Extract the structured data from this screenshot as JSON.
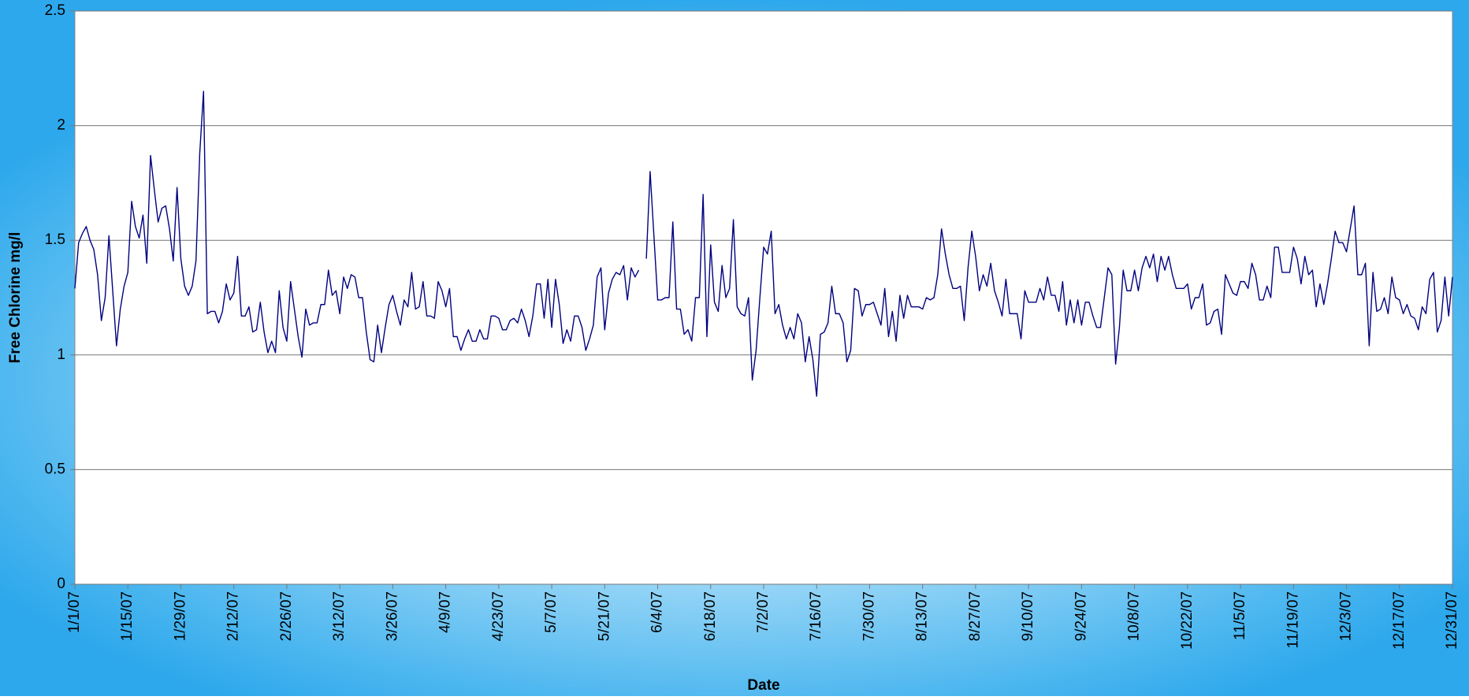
{
  "chart_data": {
    "type": "line",
    "x_label": "Date",
    "y_label": "Free Chlorine mg/l",
    "color": "#000080",
    "grid": true,
    "ylim": [
      0,
      2.5
    ],
    "yticks": [
      0,
      0.5,
      1,
      1.5,
      2,
      2.5
    ],
    "categories": [
      "1/1/07",
      null,
      null,
      null,
      null,
      null,
      null,
      null,
      null,
      null,
      null,
      null,
      null,
      null,
      "1/15/07",
      null,
      null,
      null,
      null,
      null,
      null,
      null,
      null,
      null,
      null,
      null,
      null,
      null,
      "1/29/07",
      null,
      null,
      null,
      null,
      null,
      null,
      null,
      null,
      null,
      null,
      null,
      null,
      null,
      "2/12/07",
      null,
      null,
      null,
      null,
      null,
      null,
      null,
      null,
      null,
      null,
      null,
      null,
      null,
      "2/26/07",
      null,
      null,
      null,
      null,
      null,
      null,
      null,
      null,
      null,
      null,
      null,
      null,
      null,
      "3/12/07",
      null,
      null,
      null,
      null,
      null,
      null,
      null,
      null,
      null,
      null,
      null,
      null,
      null,
      "3/26/07",
      null,
      null,
      null,
      null,
      null,
      null,
      null,
      null,
      null,
      null,
      null,
      null,
      null,
      "4/9/07",
      null,
      null,
      null,
      null,
      null,
      null,
      null,
      null,
      null,
      null,
      null,
      null,
      null,
      "4/23/07",
      null,
      null,
      null,
      null,
      null,
      null,
      null,
      null,
      null,
      null,
      null,
      null,
      null,
      "5/7/07",
      null,
      null,
      null,
      null,
      null,
      null,
      null,
      null,
      null,
      null,
      null,
      null,
      null,
      "5/21/07",
      null,
      null,
      null,
      null,
      null,
      null,
      null,
      null,
      null,
      null,
      null,
      null,
      null,
      "6/4/07",
      null,
      null,
      null,
      null,
      null,
      null,
      null,
      null,
      null,
      null,
      null,
      null,
      null,
      "6/18/07",
      null,
      null,
      null,
      null,
      null,
      null,
      null,
      null,
      null,
      null,
      null,
      null,
      null,
      "7/2/07",
      null,
      null,
      null,
      null,
      null,
      null,
      null,
      null,
      null,
      null,
      null,
      null,
      null,
      "7/16/07",
      null,
      null,
      null,
      null,
      null,
      null,
      null,
      null,
      null,
      null,
      null,
      null,
      null,
      "7/30/07",
      null,
      null,
      null,
      null,
      null,
      null,
      null,
      null,
      null,
      null,
      null,
      null,
      null,
      "8/13/07",
      null,
      null,
      null,
      null,
      null,
      null,
      null,
      null,
      null,
      null,
      null,
      null,
      null,
      "8/27/07",
      null,
      null,
      null,
      null,
      null,
      null,
      null,
      null,
      null,
      null,
      null,
      null,
      null,
      "9/10/07",
      null,
      null,
      null,
      null,
      null,
      null,
      null,
      null,
      null,
      null,
      null,
      null,
      null,
      "9/24/07",
      null,
      null,
      null,
      null,
      null,
      null,
      null,
      null,
      null,
      null,
      null,
      null,
      null,
      "10/8/07",
      null,
      null,
      null,
      null,
      null,
      null,
      null,
      null,
      null,
      null,
      null,
      null,
      null,
      "10/22/07",
      null,
      null,
      null,
      null,
      null,
      null,
      null,
      null,
      null,
      null,
      null,
      null,
      null,
      "11/5/07",
      null,
      null,
      null,
      null,
      null,
      null,
      null,
      null,
      null,
      null,
      null,
      null,
      null,
      "11/19/07",
      null,
      null,
      null,
      null,
      null,
      null,
      null,
      null,
      null,
      null,
      null,
      null,
      null,
      "12/3/07",
      null,
      null,
      null,
      null,
      null,
      null,
      null,
      null,
      null,
      null,
      null,
      null,
      null,
      "12/17/07",
      null,
      null,
      null,
      null,
      null,
      null,
      null,
      null,
      null,
      null,
      null,
      null,
      null,
      "12/31/07"
    ],
    "values": [
      1.29,
      1.49,
      1.53,
      1.56,
      1.5,
      1.46,
      1.35,
      1.15,
      1.25,
      1.52,
      1.28,
      1.04,
      1.2,
      1.3,
      1.36,
      1.67,
      1.56,
      1.51,
      1.61,
      1.4,
      1.87,
      1.72,
      1.58,
      1.64,
      1.65,
      1.55,
      1.41,
      1.73,
      1.42,
      1.3,
      1.26,
      1.3,
      1.41,
      1.88,
      2.15,
      1.18,
      1.19,
      1.19,
      1.14,
      1.19,
      1.31,
      1.24,
      1.27,
      1.43,
      1.17,
      1.17,
      1.21,
      1.1,
      1.11,
      1.23,
      1.1,
      1.01,
      1.06,
      1.01,
      1.28,
      1.12,
      1.06,
      1.32,
      1.2,
      1.08,
      0.99,
      1.2,
      1.13,
      1.14,
      1.14,
      1.22,
      1.22,
      1.37,
      1.26,
      1.28,
      1.18,
      1.34,
      1.29,
      1.35,
      1.34,
      1.25,
      1.25,
      1.1,
      0.98,
      0.97,
      1.13,
      1.01,
      1.12,
      1.22,
      1.26,
      1.19,
      1.13,
      1.24,
      1.21,
      1.36,
      1.2,
      1.21,
      1.32,
      1.17,
      1.17,
      1.16,
      1.32,
      1.28,
      1.21,
      1.29,
      1.08,
      1.08,
      1.02,
      1.07,
      1.11,
      1.06,
      1.06,
      1.11,
      1.07,
      1.07,
      1.17,
      1.17,
      1.16,
      1.11,
      1.11,
      1.15,
      1.16,
      1.14,
      1.2,
      1.15,
      1.08,
      1.17,
      1.31,
      1.31,
      1.16,
      1.33,
      1.12,
      1.33,
      1.22,
      1.05,
      1.11,
      1.06,
      1.17,
      1.17,
      1.12,
      1.02,
      1.07,
      1.13,
      1.34,
      1.38,
      1.11,
      1.27,
      1.33,
      1.36,
      1.35,
      1.39,
      1.24,
      1.38,
      1.34,
      1.37,
      null,
      1.42,
      1.8,
      1.52,
      1.24,
      1.24,
      1.25,
      1.25,
      1.58,
      1.2,
      1.2,
      1.09,
      1.11,
      1.06,
      1.25,
      1.25,
      1.7,
      1.08,
      1.48,
      1.23,
      1.19,
      1.39,
      1.25,
      1.29,
      1.59,
      1.21,
      1.18,
      1.17,
      1.25,
      0.89,
      1.02,
      1.25,
      1.47,
      1.44,
      1.54,
      1.18,
      1.22,
      1.13,
      1.07,
      1.12,
      1.07,
      1.18,
      1.14,
      0.97,
      1.08,
      0.98,
      0.82,
      1.09,
      1.1,
      1.14,
      1.3,
      1.18,
      1.18,
      1.14,
      0.97,
      1.02,
      1.29,
      1.28,
      1.17,
      1.22,
      1.22,
      1.23,
      1.18,
      1.13,
      1.29,
      1.08,
      1.19,
      1.06,
      1.26,
      1.16,
      1.26,
      1.21,
      1.21,
      1.21,
      1.2,
      1.25,
      1.24,
      1.25,
      1.35,
      1.55,
      1.44,
      1.35,
      1.29,
      1.29,
      1.3,
      1.15,
      1.38,
      1.54,
      1.43,
      1.28,
      1.35,
      1.3,
      1.4,
      1.28,
      1.23,
      1.17,
      1.33,
      1.18,
      1.18,
      1.18,
      1.07,
      1.28,
      1.23,
      1.23,
      1.23,
      1.29,
      1.24,
      1.34,
      1.26,
      1.26,
      1.19,
      1.32,
      1.13,
      1.24,
      1.14,
      1.24,
      1.13,
      1.23,
      1.23,
      1.17,
      1.12,
      1.12,
      1.25,
      1.38,
      1.35,
      0.96,
      1.12,
      1.37,
      1.28,
      1.28,
      1.37,
      1.28,
      1.38,
      1.43,
      1.38,
      1.44,
      1.32,
      1.43,
      1.37,
      1.43,
      1.35,
      1.29,
      1.29,
      1.29,
      1.31,
      1.2,
      1.25,
      1.25,
      1.31,
      1.13,
      1.14,
      1.19,
      1.2,
      1.09,
      1.35,
      1.31,
      1.27,
      1.26,
      1.32,
      1.32,
      1.29,
      1.4,
      1.35,
      1.24,
      1.24,
      1.3,
      1.25,
      1.47,
      1.47,
      1.36,
      1.36,
      1.36,
      1.47,
      1.42,
      1.31,
      1.43,
      1.35,
      1.37,
      1.21,
      1.31,
      1.22,
      1.31,
      1.42,
      1.54,
      1.49,
      1.49,
      1.45,
      1.55,
      1.65,
      1.35,
      1.35,
      1.4,
      1.04,
      1.36,
      1.19,
      1.2,
      1.25,
      1.18,
      1.34,
      1.25,
      1.24,
      1.18,
      1.22,
      1.17,
      1.16,
      1.11,
      1.21,
      1.18,
      1.33,
      1.36,
      1.1,
      1.15,
      1.34,
      1.17,
      1.34
    ]
  }
}
